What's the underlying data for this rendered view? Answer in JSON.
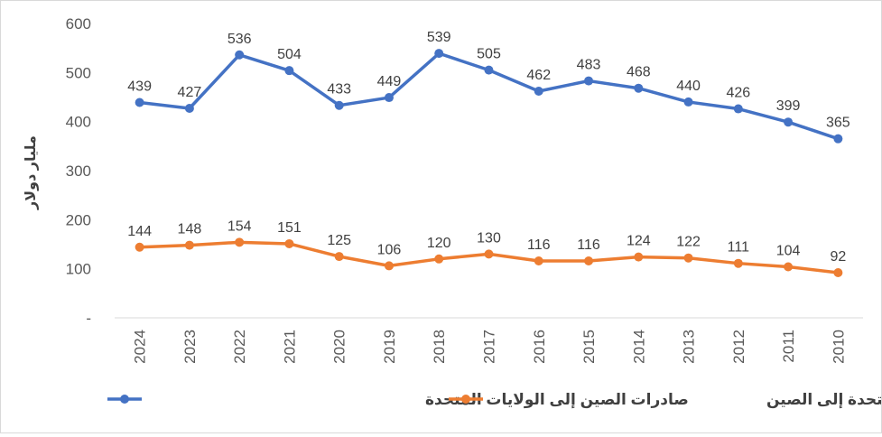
{
  "chart_data": {
    "type": "line",
    "title": "",
    "xlabel": "",
    "ylabel": "مليار دولار",
    "ylim": [
      0,
      600
    ],
    "yticks": [
      "-",
      "100",
      "200",
      "300",
      "400",
      "500",
      "600"
    ],
    "x_direction": "right-to-left",
    "categories": [
      "2024",
      "2023",
      "2022",
      "2021",
      "2020",
      "2019",
      "2018",
      "2017",
      "2016",
      "2015",
      "2014",
      "2013",
      "2012",
      "2011",
      "2010"
    ],
    "grid": false,
    "legend_position": "bottom",
    "series": [
      {
        "name": "صادرات الصين إلى الولايات المتحدة",
        "color": "#4472C4",
        "values": [
          439,
          427,
          536,
          504,
          433,
          449,
          539,
          505,
          462,
          483,
          468,
          440,
          426,
          399,
          365
        ]
      },
      {
        "name": "صادرات الولايات المتحدة إلى الصين",
        "color": "#ED7D31",
        "values": [
          144,
          148,
          154,
          151,
          125,
          106,
          120,
          130,
          116,
          116,
          124,
          122,
          111,
          104,
          92
        ]
      }
    ]
  }
}
